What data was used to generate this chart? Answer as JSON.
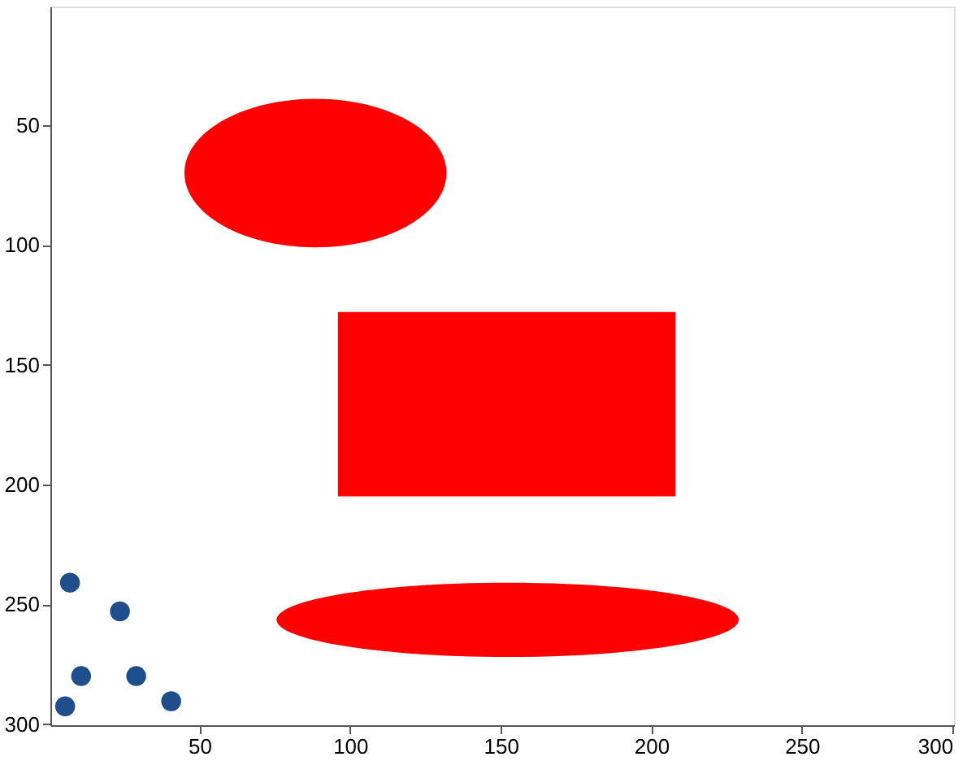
{
  "chart_data": {
    "type": "scatter",
    "x": [
      7,
      23.6,
      10.7,
      29,
      5.4,
      40.6
    ],
    "series": [
      {
        "color": "#1f4e8c",
        "values": [
          241,
          253,
          280,
          280,
          292.6,
          290.5
        ]
      }
    ],
    "xlim": [
      0.5,
      300.5
    ],
    "ylim": [
      300.5,
      0.5
    ],
    "xticks": [
      50,
      100,
      150,
      200,
      250,
      300
    ],
    "yticks": [
      50,
      100,
      150,
      200,
      250,
      300
    ],
    "marker": "circle",
    "grid": false
  }
}
